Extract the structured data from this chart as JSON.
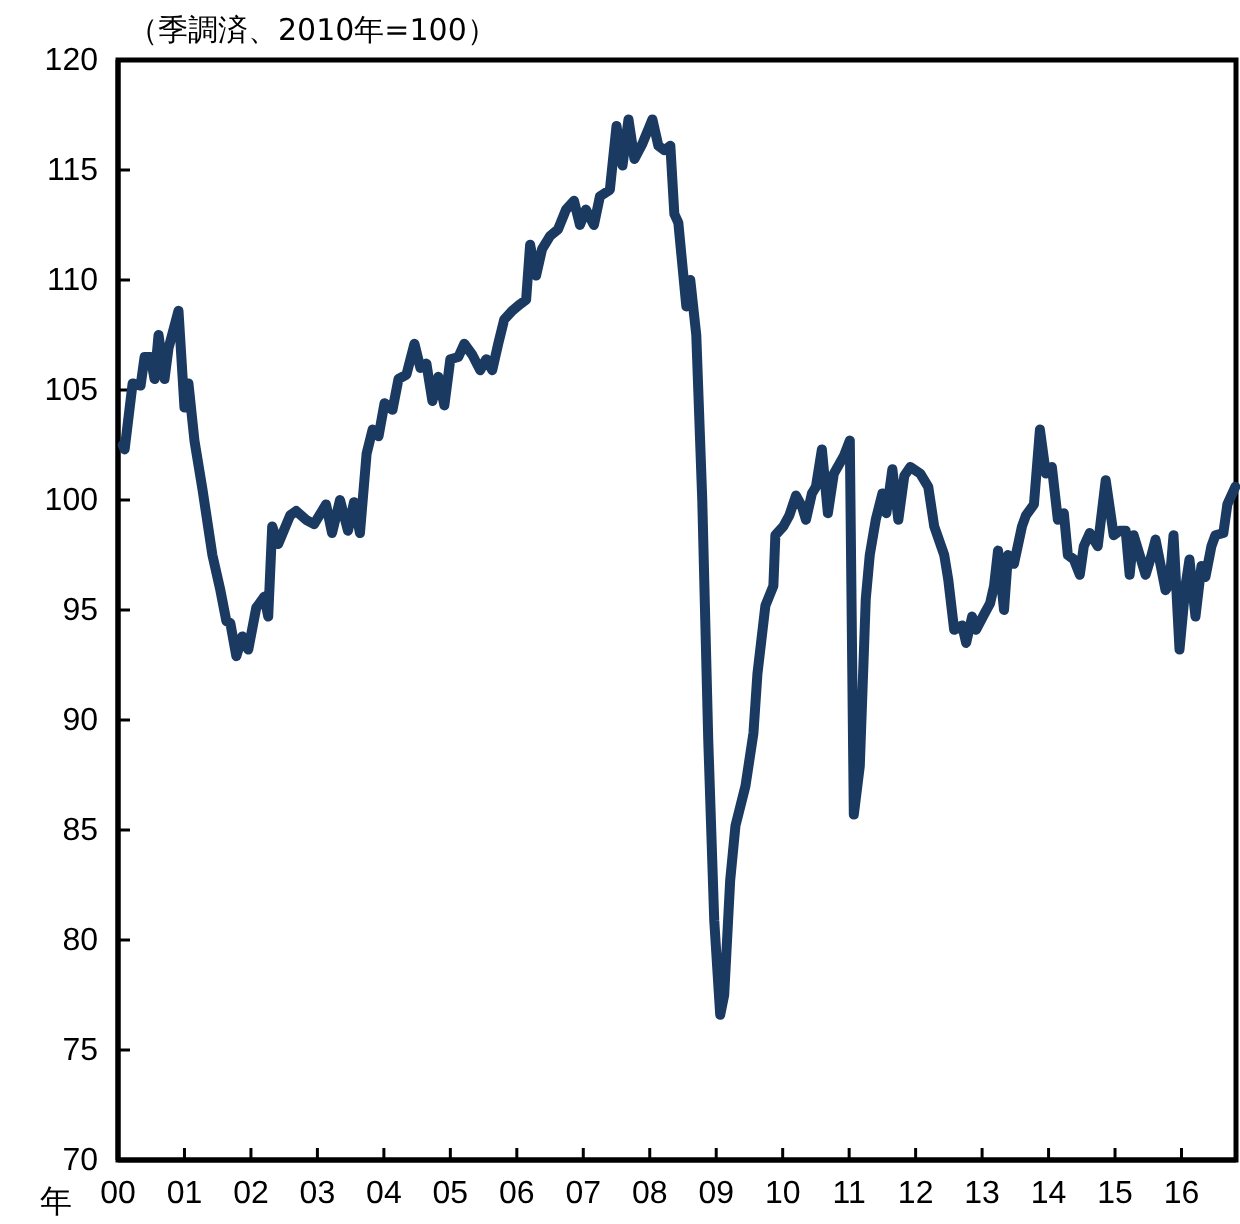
{
  "chart_data": {
    "type": "line",
    "title": "（季調済、2010年=100）",
    "xlabel": "年",
    "xlim": [
      2000,
      2016.82
    ],
    "xticks": [
      {
        "value": 2000,
        "label": "00"
      },
      {
        "value": 2001,
        "label": "01"
      },
      {
        "value": 2002,
        "label": "02"
      },
      {
        "value": 2003,
        "label": "03"
      },
      {
        "value": 2004,
        "label": "04"
      },
      {
        "value": 2005,
        "label": "05"
      },
      {
        "value": 2006,
        "label": "06"
      },
      {
        "value": 2007,
        "label": "07"
      },
      {
        "value": 2008,
        "label": "08"
      },
      {
        "value": 2009,
        "label": "09"
      },
      {
        "value": 2010,
        "label": "10"
      },
      {
        "value": 2011,
        "label": "11"
      },
      {
        "value": 2012,
        "label": "12"
      },
      {
        "value": 2013,
        "label": "13"
      },
      {
        "value": 2014,
        "label": "14"
      },
      {
        "value": 2015,
        "label": "15"
      },
      {
        "value": 2016,
        "label": "16"
      }
    ],
    "ylim": [
      70,
      120
    ],
    "yticks": [
      70,
      75,
      80,
      85,
      90,
      95,
      100,
      105,
      110,
      115,
      120
    ],
    "grid": false,
    "marker": "none",
    "line_style": "solid",
    "series": [
      {
        "color": "#1b3a61",
        "x": [
          2000.07,
          2000.1,
          2000.22,
          2000.34,
          2000.4,
          2000.49,
          2000.55,
          2000.61,
          2000.7,
          2000.76,
          2000.91,
          2001.0,
          2001.06,
          2001.15,
          2001.27,
          2001.42,
          2001.54,
          2001.63,
          2001.69,
          2001.78,
          2001.87,
          2001.96,
          2002.08,
          2002.2,
          2002.26,
          2002.32,
          2002.41,
          2002.59,
          2002.68,
          2002.83,
          2002.95,
          2003.13,
          2003.22,
          2003.34,
          2003.46,
          2003.55,
          2003.64,
          2003.74,
          2003.83,
          2003.92,
          2004.01,
          2004.13,
          2004.22,
          2004.34,
          2004.46,
          2004.55,
          2004.64,
          2004.73,
          2004.82,
          2004.91,
          2005.0,
          2005.12,
          2005.21,
          2005.33,
          2005.45,
          2005.54,
          2005.63,
          2005.72,
          2005.81,
          2005.93,
          2006.05,
          2006.14,
          2006.2,
          2006.29,
          2006.38,
          2006.5,
          2006.62,
          2006.74,
          2006.86,
          2006.95,
          2007.04,
          2007.16,
          2007.25,
          2007.4,
          2007.5,
          2007.59,
          2007.68,
          2007.77,
          2007.89,
          2008.04,
          2008.13,
          2008.22,
          2008.31,
          2008.37,
          2008.43,
          2008.55,
          2008.61,
          2008.7,
          2008.79,
          2008.88,
          2008.97,
          2009.06,
          2009.12,
          2009.21,
          2009.29,
          2009.44,
          2009.56,
          2009.62,
          2009.74,
          2009.86,
          2009.89,
          2010.01,
          2010.1,
          2010.2,
          2010.29,
          2010.35,
          2010.44,
          2010.5,
          2010.59,
          2010.68,
          2010.77,
          2010.92,
          2011.01,
          2011.07,
          2011.16,
          2011.25,
          2011.31,
          2011.4,
          2011.5,
          2011.56,
          2011.65,
          2011.74,
          2011.83,
          2011.92,
          2012.07,
          2012.19,
          2012.28,
          2012.43,
          2012.49,
          2012.58,
          2012.7,
          2012.76,
          2012.85,
          2012.91,
          2013.03,
          2013.12,
          2013.18,
          2013.24,
          2013.33,
          2013.39,
          2013.48,
          2013.6,
          2013.66,
          2013.78,
          2013.87,
          2013.96,
          2014.05,
          2014.14,
          2014.23,
          2014.29,
          2014.38,
          2014.47,
          2014.53,
          2014.62,
          2014.74,
          2014.86,
          2014.98,
          2015.07,
          2015.16,
          2015.22,
          2015.28,
          2015.37,
          2015.46,
          2015.55,
          2015.61,
          2015.76,
          2015.82,
          2015.88,
          2015.97,
          2016.06,
          2016.12,
          2016.21,
          2016.3,
          2016.36,
          2016.45,
          2016.51,
          2016.63,
          2016.69,
          2016.81
        ],
        "values": [
          102.5,
          102.3,
          105.3,
          105.2,
          106.5,
          106.5,
          105.5,
          107.5,
          105.5,
          106.9,
          108.6,
          104.2,
          105.3,
          102.7,
          100.5,
          97.5,
          95.9,
          94.5,
          94.4,
          92.9,
          93.8,
          93.2,
          95.1,
          95.6,
          94.7,
          98.8,
          98.0,
          99.3,
          99.5,
          99.1,
          98.9,
          99.8,
          98.5,
          100.0,
          98.6,
          99.9,
          98.5,
          102.1,
          103.2,
          102.9,
          104.4,
          104.1,
          105.5,
          105.7,
          107.1,
          106.0,
          106.2,
          104.5,
          105.6,
          104.3,
          106.4,
          106.5,
          107.1,
          106.6,
          105.9,
          106.4,
          105.9,
          107.1,
          108.2,
          108.6,
          108.9,
          109.1,
          111.6,
          110.2,
          111.4,
          112.0,
          112.3,
          113.2,
          113.6,
          112.5,
          113.2,
          112.5,
          113.8,
          114.1,
          117.0,
          115.2,
          117.3,
          115.5,
          116.2,
          117.3,
          116.1,
          115.9,
          116.1,
          113.0,
          112.6,
          108.8,
          110.0,
          107.5,
          100.0,
          89.1,
          80.9,
          76.6,
          77.5,
          82.7,
          85.2,
          87.0,
          89.4,
          92.1,
          95.2,
          96.1,
          98.4,
          98.8,
          99.3,
          100.2,
          99.7,
          99.1,
          100.3,
          100.6,
          102.3,
          99.4,
          101.2,
          102.0,
          102.7,
          85.7,
          87.9,
          95.5,
          97.5,
          99.1,
          100.3,
          99.4,
          101.4,
          99.1,
          101.1,
          101.5,
          101.2,
          100.6,
          98.8,
          97.5,
          96.4,
          94.1,
          94.3,
          93.5,
          94.7,
          94.1,
          94.8,
          95.3,
          96.1,
          97.7,
          95.0,
          97.5,
          97.1,
          98.8,
          99.3,
          99.8,
          103.2,
          101.2,
          101.5,
          99.1,
          99.4,
          97.5,
          97.3,
          96.6,
          97.9,
          98.5,
          97.9,
          100.9,
          98.4,
          98.6,
          98.6,
          96.6,
          98.4,
          97.5,
          96.6,
          97.5,
          98.2,
          95.9,
          96.2,
          98.4,
          93.2,
          96.1,
          97.3,
          94.7,
          97.0,
          96.5,
          97.9,
          98.4,
          98.5,
          99.8,
          100.6
        ]
      }
    ]
  }
}
